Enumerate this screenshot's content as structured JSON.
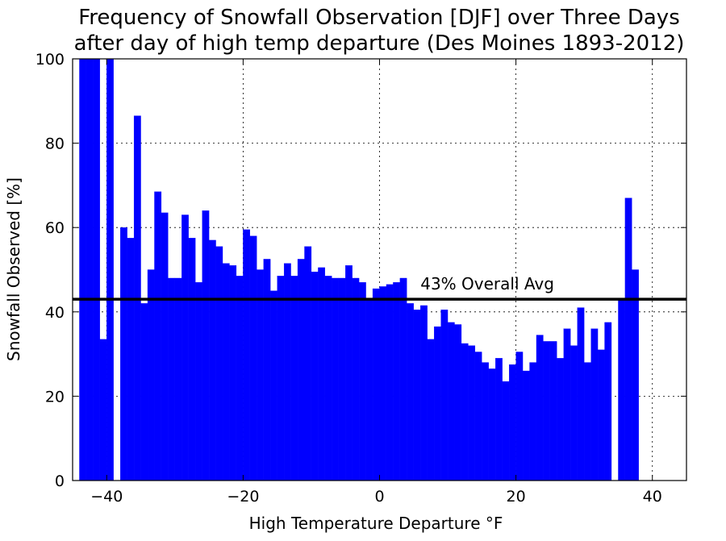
{
  "chart_data": {
    "type": "bar",
    "title_line1": "Frequency of Snowfall Observation [DJF] over Three Days",
    "title_line2": "after day of high temp departure (Des Moines 1893-2012)",
    "xlabel": "High Temperature Departure $^\\circ$F",
    "xlabel_display": "High Temperature Departure °F",
    "ylabel": "Snowfall Observed [%]",
    "xlim": [
      -45,
      45
    ],
    "ylim": [
      0,
      100
    ],
    "xticks": [
      -40,
      -20,
      0,
      20,
      40
    ],
    "xtick_labels": [
      "−40",
      "−20",
      "0",
      "20",
      "40"
    ],
    "yticks": [
      0,
      20,
      40,
      60,
      80,
      100
    ],
    "ytick_labels": [
      "0",
      "20",
      "40",
      "60",
      "80",
      "100"
    ],
    "grid": true,
    "bar_color": "#0000ff",
    "bars": [
      {
        "x": -44,
        "y": 100
      },
      {
        "x": -43,
        "y": 100
      },
      {
        "x": -42,
        "y": 100
      },
      {
        "x": -41,
        "y": 33.5
      },
      {
        "x": -40,
        "y": 100
      },
      {
        "x": -39,
        "y": 0
      },
      {
        "x": -38,
        "y": 60
      },
      {
        "x": -37,
        "y": 57.5
      },
      {
        "x": -36,
        "y": 86.5
      },
      {
        "x": -35,
        "y": 42
      },
      {
        "x": -34,
        "y": 50
      },
      {
        "x": -33,
        "y": 68.5
      },
      {
        "x": -32,
        "y": 63.5
      },
      {
        "x": -31,
        "y": 48
      },
      {
        "x": -30,
        "y": 48
      },
      {
        "x": -29,
        "y": 63
      },
      {
        "x": -28,
        "y": 57.5
      },
      {
        "x": -27,
        "y": 47
      },
      {
        "x": -26,
        "y": 64
      },
      {
        "x": -25,
        "y": 57
      },
      {
        "x": -24,
        "y": 55.5
      },
      {
        "x": -23,
        "y": 51.5
      },
      {
        "x": -22,
        "y": 51
      },
      {
        "x": -21,
        "y": 48.5
      },
      {
        "x": -20,
        "y": 59.5
      },
      {
        "x": -19,
        "y": 58
      },
      {
        "x": -18,
        "y": 50
      },
      {
        "x": -17,
        "y": 52.5
      },
      {
        "x": -16,
        "y": 45
      },
      {
        "x": -15,
        "y": 48.5
      },
      {
        "x": -14,
        "y": 51.5
      },
      {
        "x": -13,
        "y": 48.5
      },
      {
        "x": -12,
        "y": 52.5
      },
      {
        "x": -11,
        "y": 55.5
      },
      {
        "x": -10,
        "y": 49.5
      },
      {
        "x": -9,
        "y": 50.5
      },
      {
        "x": -8,
        "y": 48.5
      },
      {
        "x": -7,
        "y": 48
      },
      {
        "x": -6,
        "y": 48
      },
      {
        "x": -5,
        "y": 51
      },
      {
        "x": -4,
        "y": 48
      },
      {
        "x": -3,
        "y": 47
      },
      {
        "x": -2,
        "y": 43
      },
      {
        "x": -1,
        "y": 45.5
      },
      {
        "x": 0,
        "y": 46
      },
      {
        "x": 1,
        "y": 46.5
      },
      {
        "x": 2,
        "y": 47
      },
      {
        "x": 3,
        "y": 48
      },
      {
        "x": 4,
        "y": 42
      },
      {
        "x": 5,
        "y": 40.5
      },
      {
        "x": 6,
        "y": 41.5
      },
      {
        "x": 7,
        "y": 33.5
      },
      {
        "x": 8,
        "y": 36.5
      },
      {
        "x": 9,
        "y": 40.5
      },
      {
        "x": 10,
        "y": 37.5
      },
      {
        "x": 11,
        "y": 37
      },
      {
        "x": 12,
        "y": 32.5
      },
      {
        "x": 13,
        "y": 32
      },
      {
        "x": 14,
        "y": 30.5
      },
      {
        "x": 15,
        "y": 28
      },
      {
        "x": 16,
        "y": 26.5
      },
      {
        "x": 17,
        "y": 29
      },
      {
        "x": 18,
        "y": 23.5
      },
      {
        "x": 19,
        "y": 27.5
      },
      {
        "x": 20,
        "y": 30.5
      },
      {
        "x": 21,
        "y": 26
      },
      {
        "x": 22,
        "y": 28
      },
      {
        "x": 23,
        "y": 34.5
      },
      {
        "x": 24,
        "y": 33
      },
      {
        "x": 25,
        "y": 33
      },
      {
        "x": 26,
        "y": 29
      },
      {
        "x": 27,
        "y": 36
      },
      {
        "x": 28,
        "y": 32
      },
      {
        "x": 29,
        "y": 41
      },
      {
        "x": 30,
        "y": 28
      },
      {
        "x": 31,
        "y": 36
      },
      {
        "x": 32,
        "y": 31
      },
      {
        "x": 33,
        "y": 37.5
      },
      {
        "x": 34,
        "y": 0
      },
      {
        "x": 35,
        "y": 43
      },
      {
        "x": 36,
        "y": 67
      },
      {
        "x": 37,
        "y": 50
      }
    ],
    "hline": {
      "y": 43,
      "color": "#000000",
      "label": "43% Overall Avg"
    }
  }
}
